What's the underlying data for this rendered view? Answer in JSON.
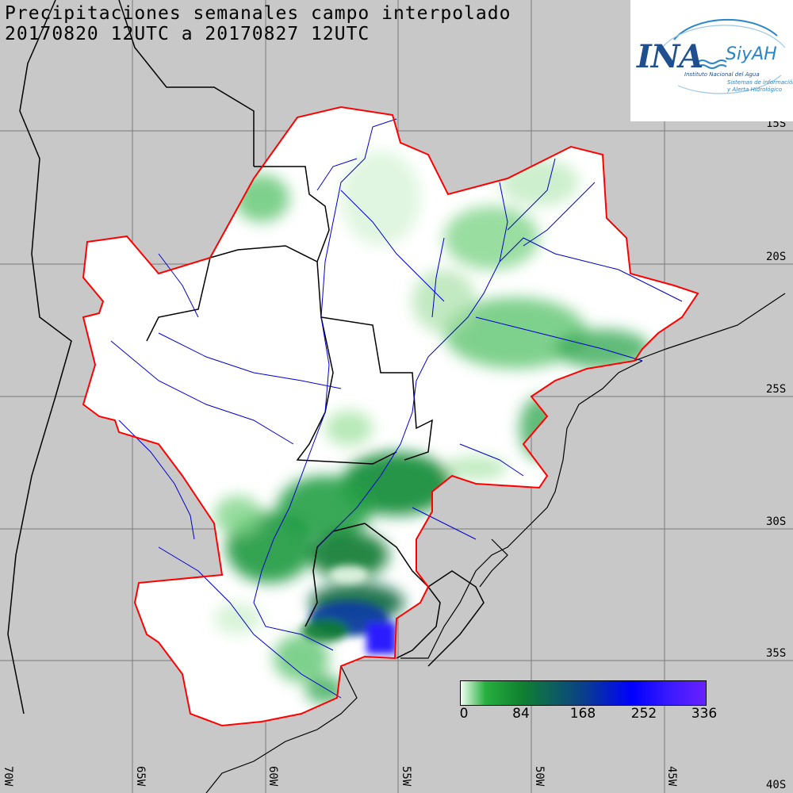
{
  "title": {
    "line1": "Precipitaciones semanales campo interpolado",
    "line2": "20170820 12UTC a 20170827 12UTC"
  },
  "logo": {
    "ina": "INA",
    "siyah": "SiyAH",
    "sub1": "Instituto Nacional del Agua",
    "sub2": "Sistemas de información",
    "sub3": "y Alerta Hidrológico"
  },
  "lat_labels": [
    "15S",
    "20S",
    "25S",
    "30S",
    "35S",
    "40S"
  ],
  "lon_labels": [
    "70W",
    "65W",
    "60W",
    "55W",
    "50W",
    "45W"
  ],
  "legend": {
    "ticks": [
      "0",
      "84",
      "168",
      "252",
      "336"
    ]
  },
  "colors": {
    "background": "#c8c8c8",
    "basin_fill": "#ffffff",
    "basin_border": "#ff0000",
    "rivers": "#0000cc",
    "borders": "#000000",
    "rain_light": "#9adf9a",
    "rain_mid": "#2aa84a",
    "rain_heavy": "#0c7a30",
    "rain_extreme": "#1a1aff"
  }
}
